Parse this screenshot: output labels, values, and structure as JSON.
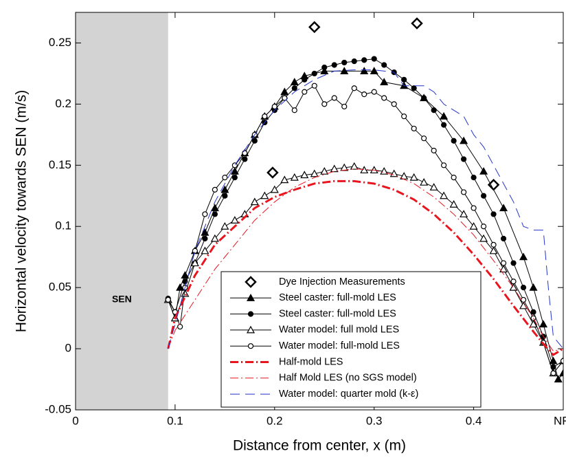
{
  "chart_data": {
    "type": "line",
    "xlabel": "Distance from center, x (m)",
    "ylabel": "Horizontal velocity  towards SEN (m/s)",
    "xlim": [
      0,
      0.49
    ],
    "ylim": [
      -0.05,
      0.275
    ],
    "xticks": [
      0,
      0.1,
      0.2,
      0.3,
      0.4
    ],
    "yticks": [
      -0.05,
      0,
      0.05,
      0.1,
      0.15,
      0.2,
      0.25
    ],
    "shaded_xlim": [
      0,
      0.093
    ],
    "shaded_color": "#d3d3d3",
    "shaded_label": "SEN",
    "corner_label": "NF",
    "legend": "lower-center",
    "series": [
      {
        "name": "Dye Injection Measurements",
        "color": "#000000",
        "marker": "diamond",
        "line": "none",
        "width": 0,
        "x": [
          0.198,
          0.24,
          0.343,
          0.42
        ],
        "values": [
          0.144,
          0.263,
          0.266,
          0.134
        ]
      },
      {
        "name": "Steel caster: full-mold LES",
        "color": "#000000",
        "marker": "triangle-filled",
        "line": "solid",
        "width": 1,
        "x": [
          0.093,
          0.1,
          0.105,
          0.11,
          0.12,
          0.13,
          0.14,
          0.15,
          0.16,
          0.17,
          0.18,
          0.19,
          0.2,
          0.21,
          0.22,
          0.23,
          0.25,
          0.27,
          0.29,
          0.3,
          0.31,
          0.33,
          0.35,
          0.37,
          0.39,
          0.41,
          0.43,
          0.45,
          0.46,
          0.47,
          0.48,
          0.485,
          0.49
        ],
        "values": [
          0.04,
          0.025,
          0.05,
          0.06,
          0.08,
          0.095,
          0.115,
          0.13,
          0.145,
          0.16,
          0.175,
          0.19,
          0.198,
          0.21,
          0.218,
          0.223,
          0.227,
          0.227,
          0.227,
          0.227,
          0.218,
          0.215,
          0.205,
          0.19,
          0.17,
          0.145,
          0.115,
          0.075,
          0.05,
          0.02,
          -0.01,
          -0.025,
          -0.02
        ]
      },
      {
        "name": "Steel caster: full-mold LES",
        "color": "#000000",
        "marker": "circle-filled",
        "line": "solid",
        "width": 1,
        "x": [
          0.093,
          0.1,
          0.11,
          0.12,
          0.13,
          0.14,
          0.15,
          0.16,
          0.17,
          0.18,
          0.19,
          0.2,
          0.21,
          0.22,
          0.23,
          0.24,
          0.25,
          0.26,
          0.27,
          0.28,
          0.29,
          0.3,
          0.31,
          0.32,
          0.33,
          0.34,
          0.35,
          0.36,
          0.37,
          0.38,
          0.39,
          0.4,
          0.41,
          0.42,
          0.43,
          0.44,
          0.45,
          0.46,
          0.47,
          0.48,
          0.49
        ],
        "values": [
          0.041,
          0.03,
          0.055,
          0.07,
          0.09,
          0.11,
          0.125,
          0.14,
          0.155,
          0.17,
          0.185,
          0.195,
          0.205,
          0.213,
          0.22,
          0.225,
          0.23,
          0.232,
          0.234,
          0.235,
          0.236,
          0.237,
          0.232,
          0.226,
          0.22,
          0.213,
          0.205,
          0.195,
          0.183,
          0.17,
          0.155,
          0.14,
          0.125,
          0.11,
          0.09,
          0.07,
          0.05,
          0.03,
          0.01,
          -0.015,
          -0.01
        ]
      },
      {
        "name": "Water model: full mold LES",
        "color": "#000000",
        "marker": "triangle-open",
        "line": "solid",
        "width": 1,
        "x": [
          0.093,
          0.1,
          0.11,
          0.12,
          0.13,
          0.14,
          0.15,
          0.16,
          0.17,
          0.18,
          0.19,
          0.2,
          0.21,
          0.22,
          0.23,
          0.24,
          0.25,
          0.26,
          0.27,
          0.28,
          0.29,
          0.3,
          0.31,
          0.32,
          0.33,
          0.34,
          0.35,
          0.36,
          0.37,
          0.38,
          0.39,
          0.4,
          0.41,
          0.42,
          0.43,
          0.44,
          0.45,
          0.46,
          0.47,
          0.48,
          0.49
        ],
        "values": [
          0.04,
          0.025,
          0.045,
          0.07,
          0.08,
          0.09,
          0.1,
          0.105,
          0.11,
          0.12,
          0.125,
          0.13,
          0.138,
          0.14,
          0.142,
          0.143,
          0.145,
          0.147,
          0.148,
          0.149,
          0.146,
          0.146,
          0.145,
          0.143,
          0.141,
          0.14,
          0.136,
          0.132,
          0.125,
          0.118,
          0.11,
          0.1,
          0.09,
          0.08,
          0.065,
          0.05,
          0.035,
          0.02,
          0.005,
          -0.02,
          -0.01
        ]
      },
      {
        "name": "Water model: full-mold LES",
        "color": "#000000",
        "marker": "circle-open",
        "line": "solid",
        "width": 1,
        "x": [
          0.093,
          0.1,
          0.105,
          0.11,
          0.12,
          0.13,
          0.14,
          0.15,
          0.16,
          0.17,
          0.18,
          0.19,
          0.2,
          0.21,
          0.22,
          0.23,
          0.24,
          0.25,
          0.26,
          0.27,
          0.28,
          0.29,
          0.3,
          0.31,
          0.32,
          0.33,
          0.34,
          0.35,
          0.36,
          0.37,
          0.38,
          0.39,
          0.4,
          0.41,
          0.42,
          0.43,
          0.44,
          0.45,
          0.46,
          0.47,
          0.48,
          0.49
        ],
        "values": [
          0.04,
          0.03,
          0.018,
          0.05,
          0.08,
          0.11,
          0.13,
          0.14,
          0.15,
          0.16,
          0.175,
          0.19,
          0.198,
          0.205,
          0.195,
          0.21,
          0.215,
          0.2,
          0.205,
          0.198,
          0.213,
          0.208,
          0.21,
          0.205,
          0.2,
          0.19,
          0.18,
          0.172,
          0.162,
          0.15,
          0.14,
          0.128,
          0.115,
          0.1,
          0.085,
          0.07,
          0.055,
          0.04,
          0.025,
          0.005,
          -0.02,
          -0.01
        ]
      },
      {
        "name": "Half-mold LES",
        "color": "#e8141e",
        "marker": "none",
        "line": "dashdot",
        "width": 3,
        "x": [
          0.093,
          0.1,
          0.12,
          0.14,
          0.16,
          0.18,
          0.2,
          0.22,
          0.24,
          0.26,
          0.28,
          0.3,
          0.32,
          0.34,
          0.36,
          0.38,
          0.4,
          0.42,
          0.44,
          0.46,
          0.47,
          0.48,
          0.49
        ],
        "values": [
          0,
          0.025,
          0.06,
          0.085,
          0.1,
          0.115,
          0.124,
          0.13,
          0.135,
          0.137,
          0.137,
          0.135,
          0.13,
          0.122,
          0.11,
          0.095,
          0.077,
          0.057,
          0.035,
          0.014,
          0.004,
          -0.005,
          0
        ]
      },
      {
        "name": "Half Mold LES (no SGS model)",
        "color": "#e8141e",
        "marker": "none",
        "line": "dashdot",
        "width": 1,
        "x": [
          0.093,
          0.1,
          0.12,
          0.14,
          0.16,
          0.18,
          0.2,
          0.22,
          0.24,
          0.26,
          0.28,
          0.3,
          0.32,
          0.34,
          0.36,
          0.38,
          0.4,
          0.42,
          0.44,
          0.46,
          0.47,
          0.48,
          0.49
        ],
        "values": [
          0,
          0.015,
          0.04,
          0.065,
          0.085,
          0.105,
          0.12,
          0.132,
          0.14,
          0.145,
          0.147,
          0.146,
          0.142,
          0.135,
          0.124,
          0.11,
          0.093,
          0.072,
          0.05,
          0.025,
          0.01,
          -0.002,
          0
        ]
      },
      {
        "name": "Water model: quarter mold (k-ε)",
        "color": "#2233cc",
        "marker": "none",
        "line": "dashed",
        "width": 1,
        "x": [
          0.093,
          0.1,
          0.12,
          0.14,
          0.16,
          0.18,
          0.2,
          0.22,
          0.24,
          0.26,
          0.28,
          0.3,
          0.32,
          0.33,
          0.35,
          0.36,
          0.37,
          0.38,
          0.39,
          0.4,
          0.41,
          0.42,
          0.43,
          0.44,
          0.45,
          0.46,
          0.47,
          0.475,
          0.48,
          0.49
        ],
        "values": [
          0,
          0.02,
          0.08,
          0.12,
          0.15,
          0.175,
          0.195,
          0.21,
          0.22,
          0.227,
          0.228,
          0.228,
          0.226,
          0.215,
          0.215,
          0.21,
          0.2,
          0.195,
          0.19,
          0.175,
          0.165,
          0.15,
          0.135,
          0.12,
          0.1,
          0.097,
          0.097,
          0.05,
          0.01,
          0
        ]
      }
    ]
  }
}
